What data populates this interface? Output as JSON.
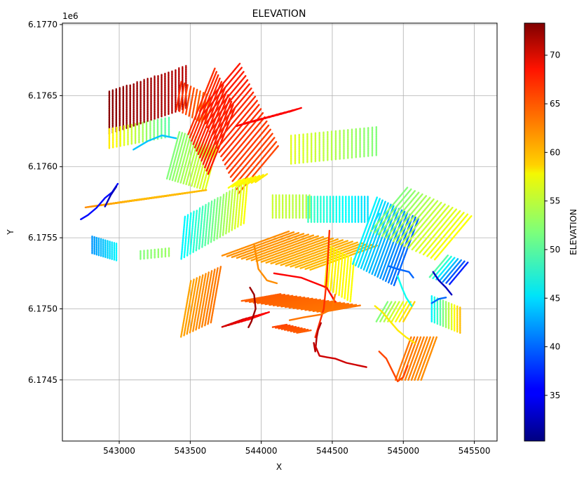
{
  "figure": {
    "title": "ELEVATION",
    "xlabel": "X",
    "ylabel": "Y",
    "y_offset_label": "1e6",
    "colorbar_label": "ELEVATION"
  },
  "chart_data": {
    "type": "scatter",
    "title": "ELEVATION",
    "xlabel": "X",
    "ylabel": "Y",
    "y_offset": "1e6",
    "xlim": [
      542600,
      545660
    ],
    "ylim": [
      6.17407,
      6.17701
    ],
    "x_ticks": [
      543000,
      543500,
      544000,
      544500,
      545000,
      545500
    ],
    "x_tick_labels": [
      "543000",
      "543500",
      "544000",
      "544500",
      "545000",
      "545500"
    ],
    "y_ticks": [
      6.1745,
      6.175,
      6.1755,
      6.176,
      6.1765,
      6.177
    ],
    "y_tick_labels": [
      "6.1745",
      "6.1750",
      "6.1755",
      "6.1760",
      "6.1765",
      "6.1770"
    ],
    "grid": true,
    "colormap": "jet",
    "color_range": [
      30.3,
      73.3
    ],
    "colorbar_ticks": [
      35,
      40,
      45,
      50,
      55,
      60,
      65,
      70
    ],
    "colorbar_label": "ELEVATION",
    "series": [
      {
        "x0": 542930,
        "x1": 543470,
        "y0": 6.17638,
        "y1": 6.17656,
        "angle": 90,
        "spacing": 26,
        "length": 0.0003,
        "z0": 73,
        "z1": 71
      },
      {
        "x0": 542930,
        "x1": 543350,
        "y0": 6.1762,
        "y1": 6.17628,
        "angle": 90,
        "spacing": 26,
        "length": 0.00014,
        "z0": 58,
        "z1": 50
      },
      {
        "x0": 543420,
        "x1": 543620,
        "y0": 6.1765,
        "y1": 6.1764,
        "angle": 80,
        "spacing": 24,
        "length": 0.0002,
        "z0": 66,
        "z1": 63
      },
      {
        "x0": 543380,
        "x1": 543650,
        "y0": 6.17608,
        "y1": 6.176,
        "angle": 75,
        "spacing": 20,
        "length": 0.00034,
        "z0": 52,
        "z1": 56
      },
      {
        "x0": 543580,
        "x1": 543720,
        "y0": 6.17646,
        "y1": 6.17618,
        "angle": 68,
        "spacing": 26,
        "length": 0.0005,
        "z0": 66,
        "z1": 67
      },
      {
        "x0": 543710,
        "x1": 543980,
        "y0": 6.17656,
        "y1": 6.17598,
        "angle": 50,
        "spacing": 32,
        "length": 0.00044,
        "z0": 67,
        "z1": 65
      },
      {
        "x0": 543870,
        "x1": 544240,
        "y0": 6.1763,
        "y1": 6.1764,
        "angle": 18,
        "spacing": 30,
        "length": 9e-05,
        "z0": 68,
        "z1": 68
      },
      {
        "x0": 543810,
        "x1": 544000,
        "y0": 6.17588,
        "y1": 6.17592,
        "angle": 35,
        "spacing": 28,
        "length": 0.0001,
        "z0": 57,
        "z1": 58
      },
      {
        "x0": 544210,
        "x1": 544810,
        "y0": 6.17612,
        "y1": 6.17618,
        "angle": 90,
        "spacing": 28,
        "length": 0.0002,
        "z0": 56,
        "z1": 52
      },
      {
        "x0": 543020,
        "x1": 543360,
        "y0": 6.17575,
        "y1": 6.1758,
        "angle": 8,
        "spacing": 16,
        "length": 0.00052,
        "z0": 62,
        "z1": 60
      },
      {
        "x0": 542810,
        "x1": 542980,
        "y0": 6.17545,
        "y1": 6.1754,
        "angle": 90,
        "spacing": 16,
        "length": 0.00012,
        "z0": 42,
        "z1": 46
      },
      {
        "x0": 543450,
        "x1": 543890,
        "y0": 6.1755,
        "y1": 6.17575,
        "angle": 85,
        "spacing": 24,
        "length": 0.0003,
        "z0": 46,
        "z1": 57
      },
      {
        "x0": 543150,
        "x1": 543350,
        "y0": 6.17538,
        "y1": 6.1754,
        "angle": 90,
        "spacing": 26,
        "length": 6e-05,
        "z0": 52,
        "z1": 53
      },
      {
        "x0": 544080,
        "x1": 544340,
        "y0": 6.17572,
        "y1": 6.17572,
        "angle": 90,
        "spacing": 24,
        "length": 0.00016,
        "z0": 55,
        "z1": 54
      },
      {
        "x0": 544330,
        "x1": 544750,
        "y0": 6.1757,
        "y1": 6.1757,
        "angle": 90,
        "spacing": 22,
        "length": 0.00018,
        "z0": 49,
        "z1": 45
      },
      {
        "x0": 543470,
        "x1": 543680,
        "y0": 6.175,
        "y1": 6.1751,
        "angle": 80,
        "spacing": 24,
        "length": 0.0004,
        "z0": 61,
        "z1": 63
      },
      {
        "x0": 543960,
        "x1": 544580,
        "y0": 6.17546,
        "y1": 6.17536,
        "angle": 20,
        "spacing": 34,
        "length": 0.0005,
        "z0": 62,
        "z1": 60
      },
      {
        "x0": 544460,
        "x1": 544640,
        "y0": 6.1753,
        "y1": 6.1752,
        "angle": 85,
        "spacing": 22,
        "length": 0.0003,
        "z0": 58,
        "z1": 57
      },
      {
        "x0": 544000,
        "x1": 544560,
        "y0": 6.17508,
        "y1": 6.175,
        "angle": 10,
        "spacing": 28,
        "length": 0.00028,
        "z0": 64,
        "z1": 63
      },
      {
        "x0": 543800,
        "x1": 543980,
        "y0": 6.1749,
        "y1": 6.17495,
        "angle": 20,
        "spacing": 22,
        "length": 0.00016,
        "z0": 70,
        "z1": 68
      },
      {
        "x0": 544130,
        "x1": 544300,
        "y0": 6.17488,
        "y1": 6.17484,
        "angle": 10,
        "spacing": 22,
        "length": 0.0001,
        "z0": 65,
        "z1": 64
      },
      {
        "x0": 544730,
        "x1": 545020,
        "y0": 6.17555,
        "y1": 6.1754,
        "angle": 70,
        "spacing": 22,
        "length": 0.0005,
        "z0": 46,
        "z1": 40
      },
      {
        "x0": 544900,
        "x1": 545350,
        "y0": 6.1757,
        "y1": 6.1755,
        "angle": 50,
        "spacing": 28,
        "length": 0.0004,
        "z0": 52,
        "z1": 57
      },
      {
        "x0": 545250,
        "x1": 545390,
        "y0": 6.1753,
        "y1": 6.17525,
        "angle": 50,
        "spacing": 26,
        "length": 0.0002,
        "z0": 50,
        "z1": 37
      },
      {
        "x0": 545200,
        "x1": 545400,
        "y0": 6.175,
        "y1": 6.17492,
        "angle": 90,
        "spacing": 22,
        "length": 0.00018,
        "z0": 46,
        "z1": 60
      },
      {
        "x0": 545000,
        "x1": 545180,
        "y0": 6.17465,
        "y1": 6.17465,
        "angle": 70,
        "spacing": 22,
        "length": 0.00032,
        "z0": 63,
        "z1": 62
      },
      {
        "x0": 544850,
        "x1": 545040,
        "y0": 6.17498,
        "y1": 6.17498,
        "angle": 60,
        "spacing": 26,
        "length": 0.00016,
        "z0": 52,
        "z1": 59
      }
    ],
    "lines": [
      {
        "x": [
          542730,
          542780,
          542840,
          542900,
          542950,
          542990
        ],
        "y": [
          6.17563,
          6.17566,
          6.17571,
          6.17578,
          6.17582,
          6.17588
        ],
        "z": 36
      },
      {
        "x": [
          542900,
          542940,
          542980
        ],
        "y": [
          6.17572,
          6.1758,
          6.17586
        ],
        "z": 33
      },
      {
        "x": [
          543100,
          543200,
          543300,
          543400
        ],
        "y": [
          6.17612,
          6.17618,
          6.17622,
          6.1762
        ],
        "z": 44
      },
      {
        "x": [
          543950,
          543980,
          544040,
          544110
        ],
        "y": [
          6.17545,
          6.17528,
          6.1752,
          6.17518
        ],
        "z": 62
      },
      {
        "x": [
          544090,
          544280,
          544460,
          544520
        ],
        "y": [
          6.17525,
          6.17522,
          6.17515,
          6.17505
        ],
        "z": 68
      },
      {
        "x": [
          544480,
          544460,
          544440,
          544380
        ],
        "y": [
          6.17555,
          6.1752,
          6.175,
          6.1748
        ],
        "z": 66
      },
      {
        "x": [
          544520,
          544500,
          544420,
          544300,
          544200
        ],
        "y": [
          6.1751,
          6.175,
          6.17496,
          6.17494,
          6.17492
        ],
        "z": 63
      },
      {
        "x": [
          543910,
          543930,
          543960,
          543950,
          543920
        ],
        "y": [
          6.17487,
          6.17491,
          6.175,
          6.1751,
          6.17515
        ],
        "z": 72
      },
      {
        "x": [
          544370,
          544380,
          544390,
          544400,
          544420
        ],
        "y": [
          6.17476,
          6.1747,
          6.1748,
          6.17485,
          6.1749
        ],
        "z": 71
      },
      {
        "x": [
          544380,
          544410,
          544460,
          544520,
          544600,
          544740
        ],
        "y": [
          6.17474,
          6.17467,
          6.17466,
          6.17465,
          6.17462,
          6.17459
        ],
        "z": 70
      },
      {
        "x": [
          544830,
          544880,
          544930,
          544960,
          545000,
          545030
        ],
        "y": [
          6.1747,
          6.17465,
          6.17455,
          6.17449,
          6.17452,
          6.1746
        ],
        "z": 65
      },
      {
        "x": [
          544800,
          544850,
          544900,
          544960,
          545020,
          545080
        ],
        "y": [
          6.17502,
          6.17498,
          6.17492,
          6.17485,
          6.1748,
          6.17476
        ],
        "z": 58
      },
      {
        "x": [
          544960,
          544990,
          545020,
          545060
        ],
        "y": [
          6.17523,
          6.17515,
          6.17508,
          6.17502
        ],
        "z": 47
      },
      {
        "x": [
          544900,
          544960,
          545040,
          545070
        ],
        "y": [
          6.1753,
          6.17528,
          6.17526,
          6.17522
        ],
        "z": 40
      },
      {
        "x": [
          545210,
          545250,
          545300,
          545340
        ],
        "y": [
          6.17526,
          6.1752,
          6.17515,
          6.1751
        ],
        "z": 33
      },
      {
        "x": [
          545200,
          545250,
          545300
        ],
        "y": [
          6.17504,
          6.17507,
          6.17508
        ],
        "z": 40
      },
      {
        "x": [
          544780,
          544800,
          544830
        ],
        "y": [
          6.17556,
          6.17562,
          6.17567
        ],
        "z": 45
      }
    ]
  }
}
